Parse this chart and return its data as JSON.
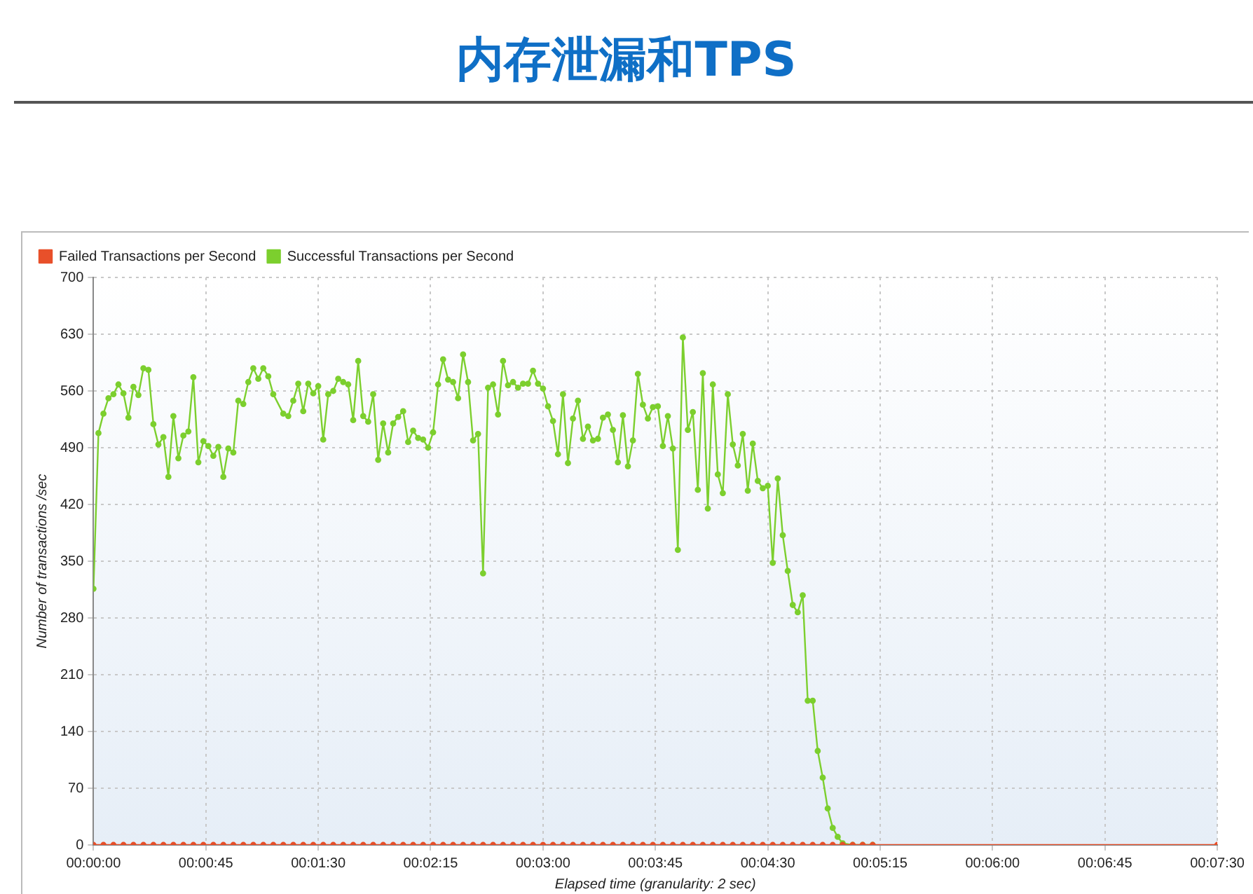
{
  "chart_data": {
    "type": "line",
    "title": "内存泄漏和TPS",
    "xlabel": "Elapsed time (granularity: 2 sec)",
    "ylabel": "Number of transactions /sec",
    "xlim": [
      0,
      450
    ],
    "ylim": [
      0,
      700
    ],
    "xticks": [
      {
        "value": 0,
        "label": "00:00:00"
      },
      {
        "value": 45,
        "label": "00:00:45"
      },
      {
        "value": 90,
        "label": "00:01:30"
      },
      {
        "value": 135,
        "label": "00:02:15"
      },
      {
        "value": 180,
        "label": "00:03:00"
      },
      {
        "value": 225,
        "label": "00:03:45"
      },
      {
        "value": 270,
        "label": "00:04:30"
      },
      {
        "value": 315,
        "label": "00:05:15"
      },
      {
        "value": 360,
        "label": "00:06:00"
      },
      {
        "value": 405,
        "label": "00:06:45"
      },
      {
        "value": 450,
        "label": "00:07:30"
      }
    ],
    "yticks": [
      0,
      70,
      140,
      210,
      280,
      350,
      420,
      490,
      560,
      630,
      700
    ],
    "grid": true,
    "legend": "top left",
    "marker": "circle",
    "line_style": "solid",
    "series": [
      {
        "name": "Failed Transactions per Second",
        "color": "#e8502a",
        "x": [
          0,
          4,
          8,
          12,
          16,
          20,
          24,
          28,
          32,
          36,
          40,
          44,
          48,
          52,
          56,
          60,
          64,
          68,
          72,
          76,
          80,
          84,
          88,
          92,
          96,
          100,
          104,
          108,
          112,
          116,
          120,
          124,
          128,
          132,
          136,
          140,
          144,
          148,
          152,
          156,
          160,
          164,
          168,
          172,
          176,
          180,
          184,
          188,
          192,
          196,
          200,
          204,
          208,
          212,
          216,
          220,
          224,
          228,
          232,
          236,
          240,
          244,
          248,
          252,
          256,
          260,
          264,
          268,
          272,
          276,
          280,
          284,
          288,
          292,
          296,
          300,
          304,
          308,
          312,
          450
        ],
        "values": [
          0,
          0,
          0,
          0,
          0,
          0,
          0,
          0,
          0,
          0,
          0,
          0,
          0,
          0,
          0,
          0,
          0,
          0,
          0,
          0,
          0,
          0,
          0,
          0,
          0,
          0,
          0,
          0,
          0,
          0,
          0,
          0,
          0,
          0,
          0,
          0,
          0,
          0,
          0,
          0,
          0,
          0,
          0,
          0,
          0,
          0,
          0,
          0,
          0,
          0,
          0,
          0,
          0,
          0,
          0,
          0,
          0,
          0,
          0,
          0,
          0,
          0,
          0,
          0,
          0,
          0,
          0,
          0,
          0,
          0,
          0,
          0,
          0,
          0,
          0,
          0,
          0,
          0,
          0,
          0
        ]
      },
      {
        "name": "Successful Transactions per Second",
        "color": "#7ccf2e",
        "x": [
          0,
          2,
          4,
          6,
          8,
          10,
          12,
          14,
          16,
          18,
          20,
          22,
          24,
          26,
          28,
          30,
          32,
          34,
          36,
          38,
          40,
          42,
          44,
          46,
          48,
          50,
          52,
          54,
          56,
          58,
          60,
          62,
          64,
          66,
          68,
          70,
          72,
          76,
          78,
          80,
          82,
          84,
          86,
          88,
          90,
          92,
          94,
          96,
          98,
          100,
          102,
          104,
          106,
          108,
          110,
          112,
          114,
          116,
          118,
          120,
          122,
          124,
          126,
          128,
          130,
          132,
          134,
          136,
          138,
          140,
          142,
          144,
          146,
          148,
          150,
          152,
          154,
          156,
          158,
          160,
          162,
          164,
          166,
          168,
          170,
          172,
          174,
          176,
          178,
          180,
          182,
          184,
          186,
          188,
          190,
          192,
          194,
          196,
          198,
          200,
          202,
          204,
          206,
          208,
          210,
          212,
          214,
          216,
          218,
          220,
          222,
          224,
          226,
          228,
          230,
          232,
          234,
          236,
          238,
          240,
          242,
          244,
          246,
          248,
          250,
          252,
          254,
          256,
          258,
          260,
          262,
          264,
          266,
          268,
          270,
          272,
          274,
          276,
          278,
          280,
          282,
          284,
          286,
          288,
          290,
          292,
          294,
          296,
          298,
          300,
          304,
          308,
          312
        ],
        "values": [
          316,
          508,
          532,
          551,
          556,
          568,
          557,
          527,
          565,
          555,
          588,
          586,
          519,
          494,
          503,
          454,
          529,
          477,
          505,
          510,
          577,
          472,
          498,
          492,
          480,
          491,
          454,
          489,
          484,
          548,
          544,
          571,
          588,
          575,
          588,
          578,
          556,
          532,
          529,
          548,
          569,
          535,
          569,
          557,
          566,
          500,
          556,
          560,
          575,
          571,
          568,
          524,
          597,
          529,
          522,
          556,
          475,
          520,
          484,
          520,
          528,
          535,
          497,
          511,
          502,
          500,
          490,
          509,
          568,
          599,
          574,
          571,
          551,
          605,
          571,
          499,
          507,
          335,
          564,
          568,
          531,
          597,
          567,
          571,
          564,
          569,
          569,
          585,
          569,
          563,
          541,
          523,
          482,
          556,
          471,
          526,
          548,
          501,
          516,
          499,
          501,
          527,
          531,
          512,
          472,
          530,
          467,
          499,
          581,
          543,
          526,
          540,
          541,
          492,
          529,
          489,
          364,
          626,
          512,
          534,
          438,
          582,
          415,
          568,
          457,
          434,
          556,
          494,
          468,
          507,
          437,
          495,
          449,
          440,
          443,
          348,
          452,
          382,
          338,
          296,
          287,
          308,
          178,
          178,
          116,
          83,
          45,
          21,
          10,
          2,
          0,
          0,
          0
        ]
      }
    ]
  }
}
